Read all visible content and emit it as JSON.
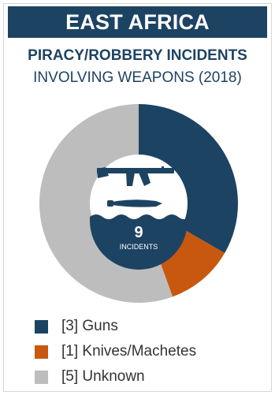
{
  "header": {
    "banner": "EAST AFRICA",
    "line1": "PIRACY/ROBBERY INCIDENTS",
    "line2": "INVOLVING WEAPONS (2018)"
  },
  "center": {
    "count": "9",
    "label": "INCIDENTS",
    "icons": [
      "rifle-icon",
      "knife-icon",
      "wave-icon"
    ]
  },
  "colors": {
    "guns": "#1d4363",
    "knives": "#c8580f",
    "unknown": "#bdbdbd",
    "banner": "#1d4363"
  },
  "chart_data": {
    "type": "pie",
    "title": "PIRACY/ROBBERY INCIDENTS INVOLVING WEAPONS (2018)",
    "categories": [
      "Guns",
      "Knives/Machetes",
      "Unknown"
    ],
    "values": [
      3,
      1,
      5
    ],
    "legend": [
      "[3] Guns",
      "[1] Knives/Machetes",
      "[5] Unknown"
    ],
    "legend_position": "bottom"
  }
}
